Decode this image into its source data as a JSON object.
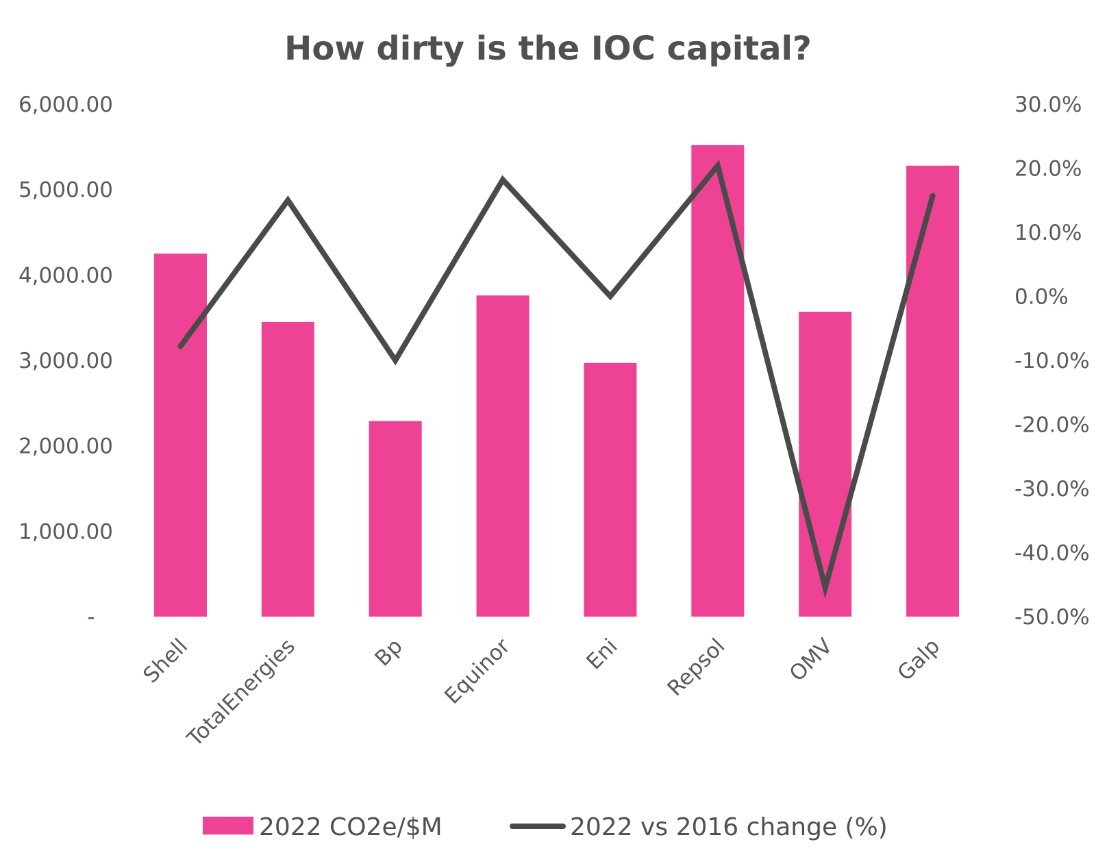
{
  "chart_data": {
    "type": "bar",
    "title": "How dirty is the IOC capital?",
    "categories": [
      "Shell",
      "TotalEnergies",
      "Bp",
      "Equinor",
      "Eni",
      "Repsol",
      "OMV",
      "Galp"
    ],
    "series": [
      {
        "name": "2022 CO2e/$M",
        "type": "bar",
        "axis": "left",
        "color": "#ee4394",
        "values": [
          4250,
          3450,
          2290,
          3760,
          2970,
          5520,
          3570,
          5280
        ]
      },
      {
        "name": "2022 vs 2016 change (%)",
        "type": "line",
        "axis": "right",
        "color": "#4a4a4a",
        "values": [
          -7.8,
          15.0,
          -10.0,
          18.2,
          0.0,
          20.4,
          -45.5,
          15.7
        ]
      }
    ],
    "y_left": {
      "ylim": [
        0,
        6000
      ],
      "tick_labels": [
        "-",
        "1,000.00",
        "2,000.00",
        "3,000.00",
        "4,000.00",
        "5,000.00",
        "6,000.00"
      ]
    },
    "y_right": {
      "ylim": [
        -50,
        30
      ],
      "tick_labels": [
        "-50.0%",
        "-40.0%",
        "-30.0%",
        "-20.0%",
        "-10.0%",
        "0.0%",
        "10.0%",
        "20.0%",
        "30.0%"
      ]
    },
    "grid": false,
    "legend": "bottom"
  }
}
